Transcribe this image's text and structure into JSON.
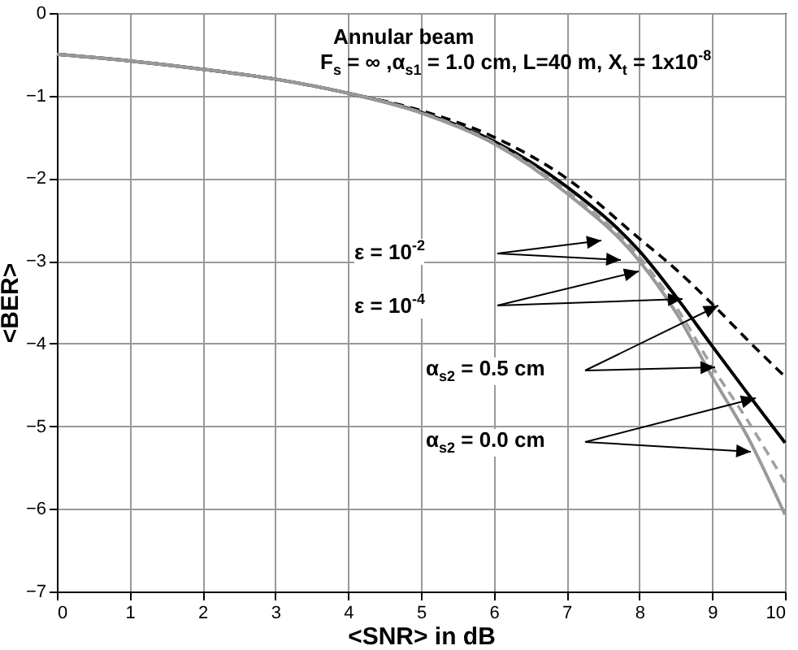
{
  "chart_data": {
    "type": "line",
    "title": "Annular  beam",
    "subtitle": "F$_{s}$ = ∞ ,α$_{s1}$ = 1.0 cm, L=40 m, X$_{t}$ =  1x10$^{-8}$",
    "xlabel": "<SNR>  in dB",
    "ylabel": "<BER>",
    "x": [
      0,
      1,
      2,
      3,
      4,
      5,
      6,
      7,
      8,
      8.5,
      9,
      9.5,
      10
    ],
    "series": [
      {
        "color": "#000000",
        "line_style": "dashed",
        "values": [
          -0.5,
          -0.58,
          -0.68,
          -0.8,
          -0.97,
          -1.18,
          -1.5,
          -2.0,
          -2.73,
          -3.1,
          -3.52,
          -3.97,
          -4.4
        ]
      },
      {
        "color": "#000000",
        "line_style": "solid",
        "values": [
          -0.5,
          -0.58,
          -0.68,
          -0.8,
          -0.97,
          -1.2,
          -1.55,
          -2.1,
          -2.88,
          -3.43,
          -4.03,
          -4.62,
          -5.2
        ]
      },
      {
        "color": "#a0a0a0",
        "line_style": "dashed",
        "values": [
          -0.5,
          -0.58,
          -0.68,
          -0.8,
          -0.97,
          -1.2,
          -1.57,
          -2.15,
          -2.95,
          -3.55,
          -4.28,
          -4.95,
          -5.68
        ]
      },
      {
        "color": "#999999",
        "line_style": "solid",
        "values": [
          -0.5,
          -0.58,
          -0.68,
          -0.8,
          -0.97,
          -1.21,
          -1.58,
          -2.18,
          -3.0,
          -3.62,
          -4.4,
          -5.15,
          -6.07
        ]
      }
    ],
    "xlim": [
      0,
      10
    ],
    "xticks": [
      0,
      1,
      2,
      3,
      4,
      5,
      6,
      7,
      8,
      9,
      10
    ],
    "ylim": [
      -7,
      0
    ],
    "yticks": [
      -7,
      -6,
      -5,
      -4,
      -3,
      -2,
      -1,
      0
    ],
    "grid": true,
    "annotations": [
      "ε =  10$^{-2}$",
      "ε =  10$^{-4}$",
      "α$_{s2}$ = 0.5 cm",
      "α$_{s2}$ = 0.0 cm"
    ]
  }
}
